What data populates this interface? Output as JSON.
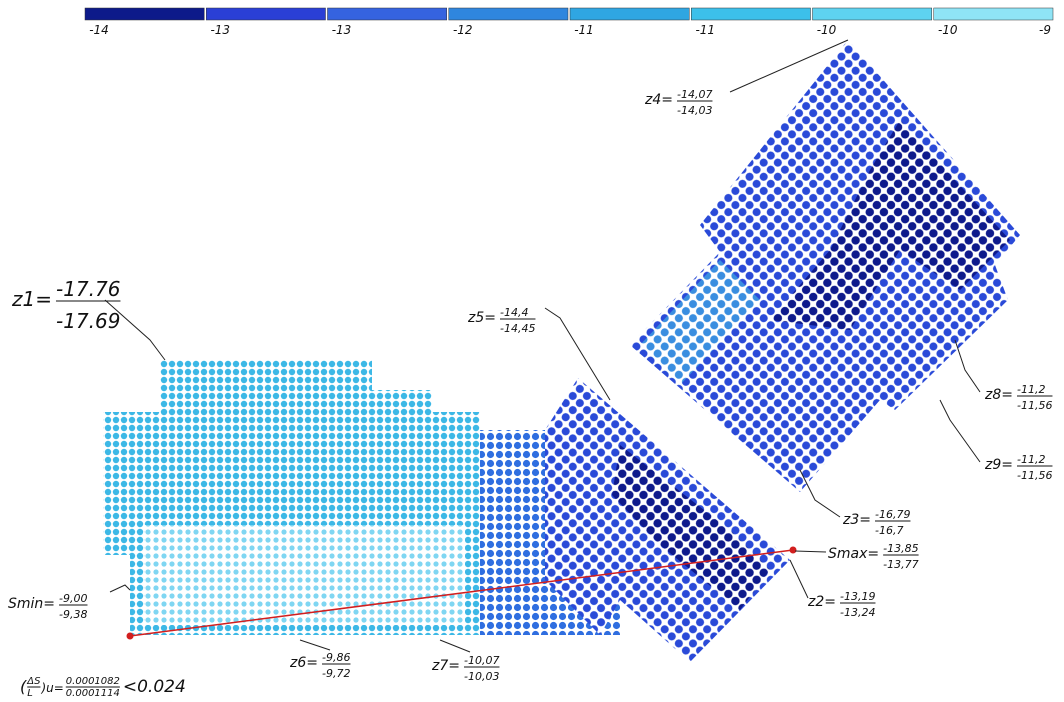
{
  "legend": {
    "colors": [
      "#0d1a8a",
      "#2a3fd6",
      "#3563e0",
      "#2f86de",
      "#2fa6e2",
      "#3cc0ea",
      "#5ed3f0",
      "#8fe4f6"
    ],
    "labels": [
      "-14",
      "-13",
      "-13",
      "-12",
      "-11",
      "-11",
      "-10",
      "-10",
      "-9"
    ]
  },
  "annotations": [
    {
      "label": "z1=",
      "top": "-17.76",
      "bottom": "-17.69"
    },
    {
      "label": "z4=",
      "top": "-14,07",
      "bottom": "-14,03"
    },
    {
      "label": "z5=",
      "top": "-14,4",
      "bottom": "-14,45"
    },
    {
      "label": "z8=",
      "top": "-11,2",
      "bottom": "-11,56"
    },
    {
      "label": "z9=",
      "top": "-11,2",
      "bottom": "-11,56"
    },
    {
      "label": "z3=",
      "top": "-16,79",
      "bottom": "-16,7"
    },
    {
      "label": "Smax=",
      "top": "-13,85",
      "bottom": "-13,77"
    },
    {
      "label": "z2=",
      "top": "-13,19",
      "bottom": "-13,24"
    },
    {
      "label": "Smin=",
      "top": "-9,00",
      "bottom": "-9,38"
    },
    {
      "label": "z6=",
      "top": "-9,86",
      "bottom": "-9,72"
    },
    {
      "label": "z7=",
      "top": "-10,07",
      "bottom": "-10,03"
    }
  ],
  "ratio": {
    "open": "(",
    "numerator": "ΔS",
    "denominator": "L",
    "close": ")u=",
    "top": "0.0001082",
    "bottom": "0.0001114",
    "limit": "<0.024"
  }
}
